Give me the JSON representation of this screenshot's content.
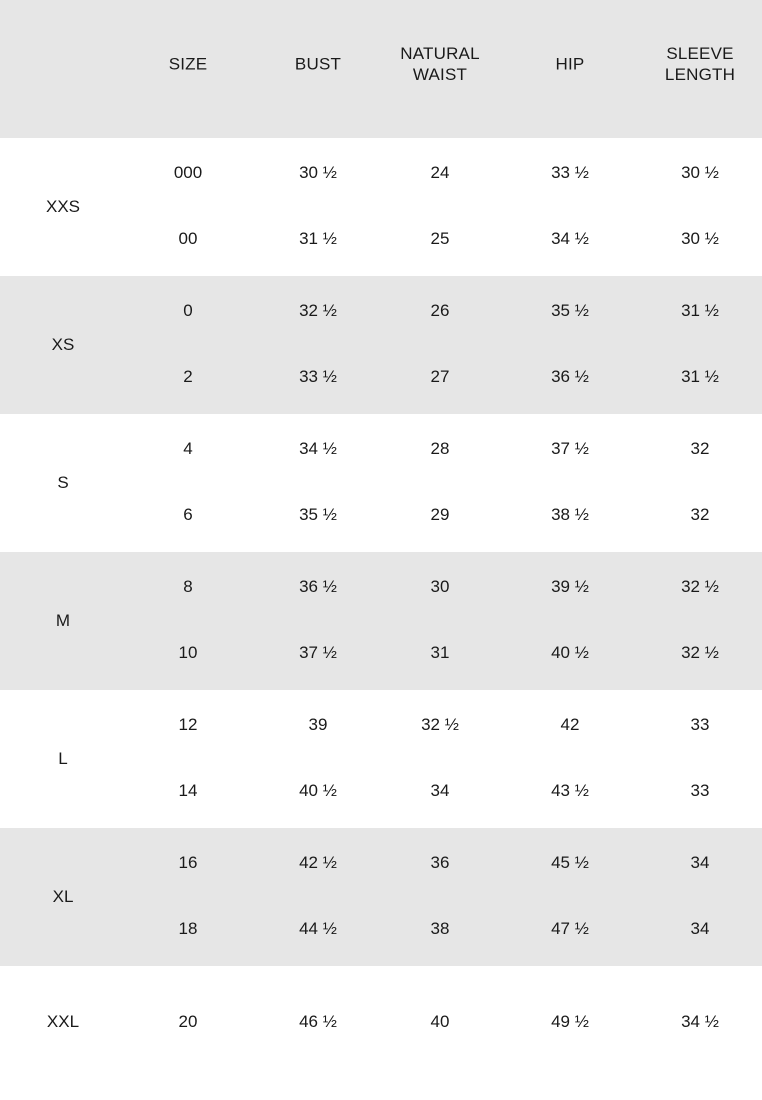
{
  "header": [
    "SIZE",
    "BUST",
    "NATURAL\nWAIST",
    "HIP",
    "SLEEVE\nLENGTH"
  ],
  "colors": {
    "band_gray": "#e6e6e6",
    "text": "#1a1a1a"
  },
  "groups": [
    {
      "label": "XXS",
      "rows": [
        [
          "000",
          "30 ½",
          "24",
          "33 ½",
          "30 ½"
        ],
        [
          "00",
          "31 ½",
          "25",
          "34 ½",
          "30 ½"
        ]
      ]
    },
    {
      "label": "XS",
      "rows": [
        [
          "0",
          "32 ½",
          "26",
          "35 ½",
          "31 ½"
        ],
        [
          "2",
          "33 ½",
          "27",
          "36 ½",
          "31 ½"
        ]
      ]
    },
    {
      "label": "S",
      "rows": [
        [
          "4",
          "34 ½",
          "28",
          "37 ½",
          "32"
        ],
        [
          "6",
          "35 ½",
          "29",
          "38 ½",
          "32"
        ]
      ]
    },
    {
      "label": "M",
      "rows": [
        [
          "8",
          "36 ½",
          "30",
          "39 ½",
          "32 ½"
        ],
        [
          "10",
          "37 ½",
          "31",
          "40 ½",
          "32 ½"
        ]
      ]
    },
    {
      "label": "L",
      "rows": [
        [
          "12",
          "39",
          "32 ½",
          "42",
          "33"
        ],
        [
          "14",
          "40 ½",
          "34",
          "43 ½",
          "33"
        ]
      ]
    },
    {
      "label": "XL",
      "rows": [
        [
          "16",
          "42 ½",
          "36",
          "45 ½",
          "34"
        ],
        [
          "18",
          "44 ½",
          "38",
          "47 ½",
          "34"
        ]
      ]
    },
    {
      "label": "XXL",
      "rows": [
        [
          "20",
          "46 ½",
          "40",
          "49 ½",
          "34 ½"
        ]
      ]
    }
  ]
}
